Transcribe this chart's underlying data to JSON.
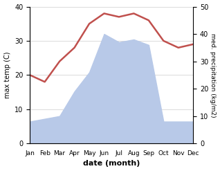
{
  "months": [
    "Jan",
    "Feb",
    "Mar",
    "Apr",
    "May",
    "Jun",
    "Jul",
    "Aug",
    "Sep",
    "Oct",
    "Nov",
    "Dec"
  ],
  "temperature": [
    20,
    18,
    24,
    28,
    35,
    38,
    37,
    38,
    36,
    30,
    28,
    29
  ],
  "precipitation": [
    8,
    9,
    10,
    19,
    26,
    40,
    37,
    38,
    36,
    8,
    8,
    8
  ],
  "temp_color": "#c0504d",
  "precip_fill_color": "#b8c9e8",
  "ylabel_left": "max temp (C)",
  "ylabel_right": "med. precipitation (kg/m2)",
  "xlabel": "date (month)",
  "ylim_left": [
    0,
    40
  ],
  "ylim_right": [
    0,
    50
  ],
  "background_color": "#ffffff"
}
